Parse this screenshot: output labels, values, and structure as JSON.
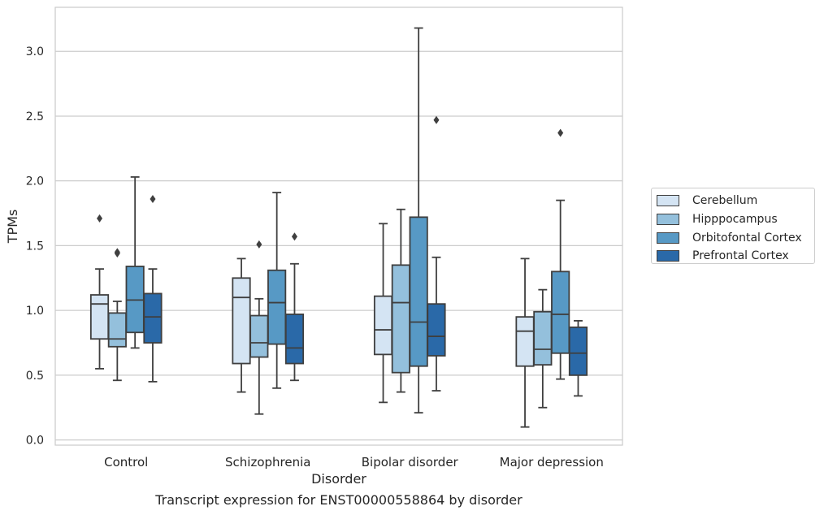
{
  "chart_data": {
    "type": "box",
    "caption": "Transcript expression for ENST00000558864 by disorder",
    "xlabel": "Disorder",
    "ylabel": "TPMs",
    "ylim": [
      -0.04,
      3.34
    ],
    "yticks": [
      "0.0",
      "0.5",
      "1.0",
      "1.5",
      "2.0",
      "2.5",
      "3.0"
    ],
    "grid": "horizontal",
    "legend_position": "right",
    "categories": [
      "Control",
      "Schizophrenia",
      "Bipolar disorder",
      "Major depression"
    ],
    "series": [
      {
        "name": "Cerebellum",
        "color": "#d4e4f3",
        "boxes": [
          {
            "whislo": 0.55,
            "q1": 0.78,
            "med": 1.05,
            "q3": 1.12,
            "whishi": 1.32,
            "fliers": [
              1.71
            ]
          },
          {
            "whislo": 0.37,
            "q1": 0.59,
            "med": 1.1,
            "q3": 1.25,
            "whishi": 1.4,
            "fliers": []
          },
          {
            "whislo": 0.29,
            "q1": 0.66,
            "med": 0.85,
            "q3": 1.11,
            "whishi": 1.67,
            "fliers": []
          },
          {
            "whislo": 0.1,
            "q1": 0.57,
            "med": 0.84,
            "q3": 0.95,
            "whishi": 1.4,
            "fliers": []
          }
        ]
      },
      {
        "name": "Hipppocampus",
        "color": "#94c0dc",
        "boxes": [
          {
            "whislo": 0.46,
            "q1": 0.72,
            "med": 0.78,
            "q3": 0.98,
            "whishi": 1.07,
            "fliers": [
              1.44,
              1.45
            ]
          },
          {
            "whislo": 0.2,
            "q1": 0.64,
            "med": 0.75,
            "q3": 0.96,
            "whishi": 1.09,
            "fliers": [
              1.51
            ]
          },
          {
            "whislo": 0.37,
            "q1": 0.52,
            "med": 1.06,
            "q3": 1.35,
            "whishi": 1.78,
            "fliers": []
          },
          {
            "whislo": 0.25,
            "q1": 0.58,
            "med": 0.7,
            "q3": 0.99,
            "whishi": 1.16,
            "fliers": []
          }
        ]
      },
      {
        "name": "Orbitofontal Cortex",
        "color": "#5799c5",
        "boxes": [
          {
            "whislo": 0.71,
            "q1": 0.83,
            "med": 1.08,
            "q3": 1.34,
            "whishi": 2.03,
            "fliers": []
          },
          {
            "whislo": 0.4,
            "q1": 0.74,
            "med": 1.06,
            "q3": 1.31,
            "whishi": 1.91,
            "fliers": []
          },
          {
            "whislo": 0.21,
            "q1": 0.57,
            "med": 0.91,
            "q3": 1.72,
            "whishi": 3.18,
            "fliers": []
          },
          {
            "whislo": 0.47,
            "q1": 0.67,
            "med": 0.97,
            "q3": 1.3,
            "whishi": 1.85,
            "fliers": [
              2.37
            ]
          }
        ]
      },
      {
        "name": "Prefrontal Cortex",
        "color": "#2a69a8",
        "boxes": [
          {
            "whislo": 0.45,
            "q1": 0.75,
            "med": 0.95,
            "q3": 1.13,
            "whishi": 1.32,
            "fliers": [
              1.86
            ]
          },
          {
            "whislo": 0.46,
            "q1": 0.59,
            "med": 0.71,
            "q3": 0.97,
            "whishi": 1.36,
            "fliers": [
              1.57
            ]
          },
          {
            "whislo": 0.38,
            "q1": 0.65,
            "med": 0.8,
            "q3": 1.05,
            "whishi": 1.41,
            "fliers": [
              2.47
            ]
          },
          {
            "whislo": 0.34,
            "q1": 0.5,
            "med": 0.67,
            "q3": 0.87,
            "whishi": 0.92,
            "fliers": []
          }
        ]
      }
    ]
  }
}
